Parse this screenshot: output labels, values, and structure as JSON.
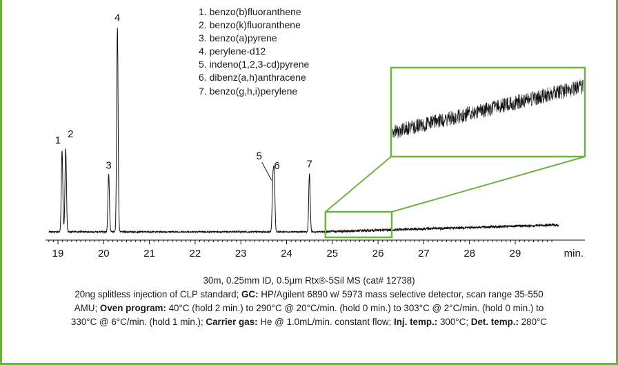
{
  "chart_data": {
    "type": "line",
    "xlabel": "min.",
    "xlim": [
      18.8,
      29.95
    ],
    "x_ticks": [
      19,
      20,
      21,
      22,
      23,
      24,
      25,
      26,
      27,
      28,
      29
    ],
    "peaks": [
      {
        "label": "1",
        "rt": 19.09,
        "height": 1.2
      },
      {
        "label": "2",
        "rt": 19.17,
        "height": 1.23
      },
      {
        "label": "3",
        "rt": 20.11,
        "height": 0.85
      },
      {
        "label": "4",
        "rt": 20.3,
        "height": 3.0
      },
      {
        "label": "5",
        "rt": 23.7,
        "height": 0.7
      },
      {
        "label": "6",
        "rt": 23.73,
        "height": 0.78
      },
      {
        "label": "7",
        "rt": 24.5,
        "height": 0.85
      }
    ],
    "zoom_window": {
      "x_range": [
        24.85,
        26.3
      ]
    },
    "legend": [
      "1. benzo(b)fluoranthene",
      "2. benzo(k)fluoranthene",
      "3. benzo(a)pyrene",
      "4. perylene-d12",
      "5. indeno(1,2,3-cd)pyrene",
      "6. dibenz(a,h)anthracene",
      "7. benzo(g,h,i)perylene"
    ]
  },
  "caption": {
    "line1": "30m, 0.25mm ID, 0.5µm Rtx®-5Sil MS (cat# 12738)",
    "line2_a": "20ng splitless injection of CLP standard; ",
    "gc_label": "GC:",
    "line2_b": " HP/Agilent 6890 w/ 5973 mass selective detector, scan range 35-550",
    "line3_a": "AMU; ",
    "oven_label": "Oven program:",
    "line3_b": " 40°C (hold 2 min.) to 290°C @ 20°C/min. (hold 0  min.) to 303°C @ 2°C/min. (hold 0 min.) to",
    "line4_a": "330°C @ 6°C/min. (hold 1 min.); ",
    "carrier_label": "Carrier gas:",
    "line4_b": " He @ 1.0mL/min. constant flow; ",
    "inj_label": "Inj. temp.:",
    "line4_c": "  300°C; ",
    "det_label": "Det. temp.:",
    "line4_d": "  280°C"
  },
  "colors": {
    "accent": "#6db33f",
    "trace": "#111111"
  }
}
